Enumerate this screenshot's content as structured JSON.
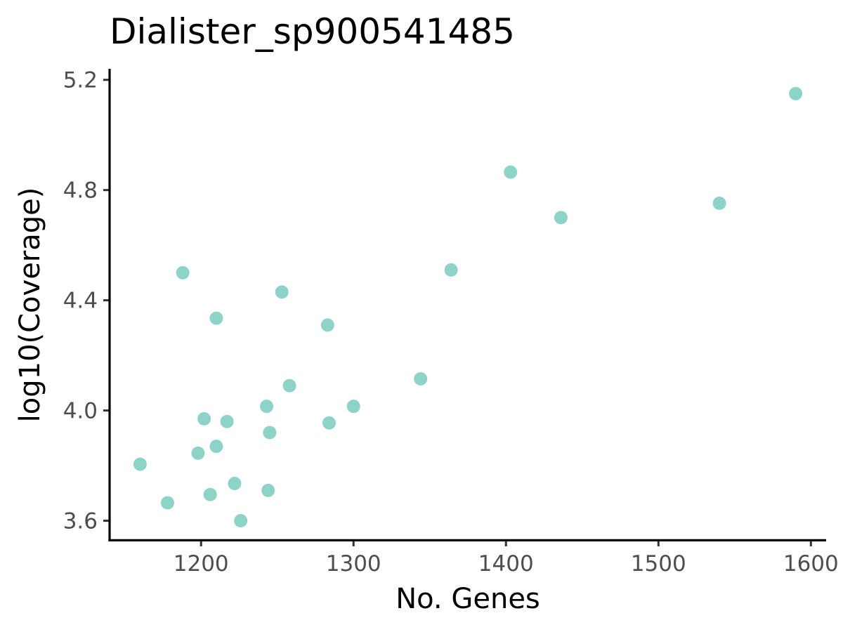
{
  "chart_data": {
    "type": "scatter",
    "title": "Dialister_sp900541485",
    "xlabel": "No. Genes",
    "ylabel": "log10(Coverage)",
    "xlim": [
      1140,
      1610
    ],
    "ylim": [
      3.53,
      5.24
    ],
    "x_ticks": [
      1200,
      1300,
      1400,
      1500,
      1600
    ],
    "x_tick_labels": [
      "1200",
      "1300",
      "1400",
      "1500",
      "1600"
    ],
    "y_ticks": [
      3.6,
      4.0,
      4.4,
      4.8,
      5.2
    ],
    "y_tick_labels": [
      "3.6",
      "4.0",
      "4.4",
      "4.8",
      "5.2"
    ],
    "grid": false,
    "legend": "none",
    "point_color": "#8ed3c7",
    "points": [
      {
        "x": 1160,
        "y": 3.805
      },
      {
        "x": 1178,
        "y": 3.665
      },
      {
        "x": 1188,
        "y": 4.5
      },
      {
        "x": 1198,
        "y": 3.845
      },
      {
        "x": 1202,
        "y": 3.97
      },
      {
        "x": 1206,
        "y": 3.695
      },
      {
        "x": 1210,
        "y": 4.335
      },
      {
        "x": 1210,
        "y": 3.87
      },
      {
        "x": 1217,
        "y": 3.96
      },
      {
        "x": 1222,
        "y": 3.735
      },
      {
        "x": 1226,
        "y": 3.6
      },
      {
        "x": 1243,
        "y": 4.015
      },
      {
        "x": 1244,
        "y": 3.71
      },
      {
        "x": 1245,
        "y": 3.92
      },
      {
        "x": 1253,
        "y": 4.43
      },
      {
        "x": 1258,
        "y": 4.09
      },
      {
        "x": 1283,
        "y": 4.31
      },
      {
        "x": 1284,
        "y": 3.955
      },
      {
        "x": 1300,
        "y": 4.015
      },
      {
        "x": 1344,
        "y": 4.115
      },
      {
        "x": 1364,
        "y": 4.51
      },
      {
        "x": 1403,
        "y": 4.865
      },
      {
        "x": 1436,
        "y": 4.7
      },
      {
        "x": 1540,
        "y": 4.752
      },
      {
        "x": 1590,
        "y": 5.15
      }
    ]
  }
}
